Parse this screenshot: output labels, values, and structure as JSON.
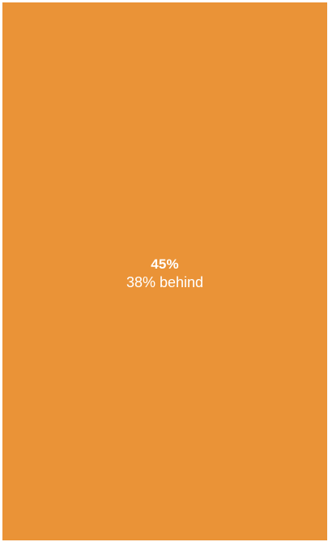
{
  "tile": {
    "background_color": "#ea9337",
    "text_color": "#ffffff",
    "progress_percent_label": "45%",
    "status_label": "38% behind"
  }
}
